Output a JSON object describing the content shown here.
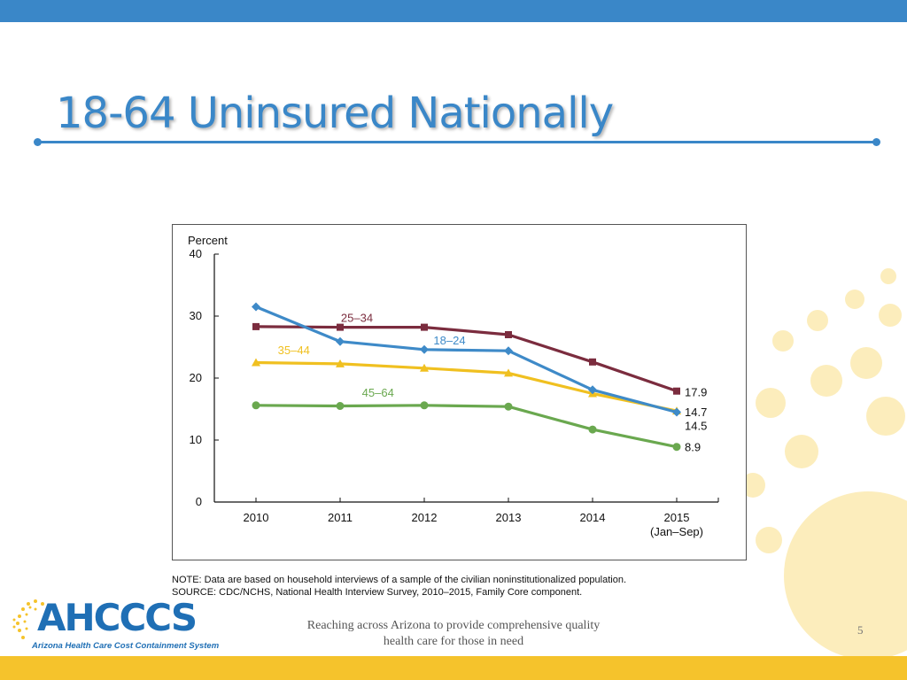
{
  "slide": {
    "title": "18-64 Uninsured Nationally",
    "footer_tagline": "Reaching across Arizona to provide comprehensive quality health care for those in need",
    "page_number": "5",
    "colors": {
      "accent_blue": "#3a87c8",
      "accent_yellow": "#f5c32c"
    }
  },
  "logo": {
    "name": "AHCCCS",
    "subtitle": "Arizona Health Care Cost Containment System"
  },
  "notes": {
    "note": "NOTE: Data are based on household interviews of a sample of the civilian noninstitutionalized population.",
    "source": "SOURCE: CDC/NCHS, National Health Interview Survey, 2010–2015, Family Core component."
  },
  "chart_data": {
    "type": "line",
    "ylabel": "Percent",
    "ylim": [
      0,
      40
    ],
    "yticks": [
      0,
      10,
      20,
      30,
      40
    ],
    "categories": [
      "2010",
      "2011",
      "2012",
      "2013",
      "2014",
      "2015\n(Jan–Sep)"
    ],
    "grid": false,
    "series": [
      {
        "name": "25–34",
        "color": "#7b2c3e",
        "marker": "square",
        "values": [
          28.3,
          28.2,
          28.2,
          27.0,
          22.6,
          17.9
        ],
        "end_label": "17.9"
      },
      {
        "name": "18–24",
        "color": "#3e8ac8",
        "marker": "diamond",
        "values": [
          31.5,
          25.9,
          24.6,
          24.4,
          18.1,
          14.5
        ],
        "end_label": "14.5"
      },
      {
        "name": "35–44",
        "color": "#f0c020",
        "marker": "triangle",
        "values": [
          22.5,
          22.3,
          21.6,
          20.8,
          17.5,
          14.7
        ],
        "end_label": "14.7"
      },
      {
        "name": "45–64",
        "color": "#6aa84f",
        "marker": "circle",
        "values": [
          15.6,
          15.5,
          15.6,
          15.4,
          11.7,
          8.9
        ],
        "end_label": "8.9"
      }
    ]
  }
}
